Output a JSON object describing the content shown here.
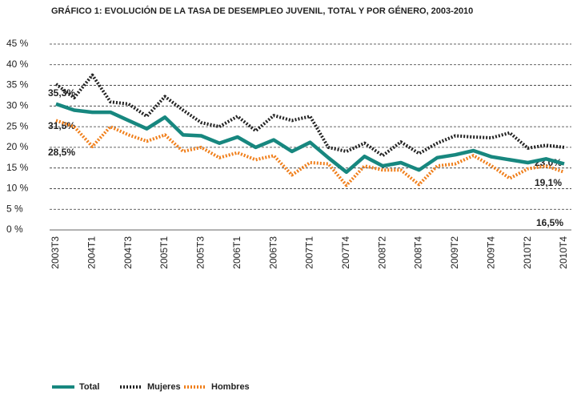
{
  "chart_data": {
    "type": "line",
    "title": "GRÁFICO 1: EVOLUCIÓN DE LA TASA DE DESEMPLEO JUVENIL, TOTAL Y POR GÉNERO, 2003-2010",
    "categories": [
      "2003T3",
      null,
      "2004T1",
      null,
      "2004T3",
      null,
      "2005T1",
      null,
      "2005T3",
      null,
      "2006T1",
      null,
      "2006T3",
      null,
      "2007T1",
      null,
      "2007T4",
      null,
      "2008T2",
      null,
      "2008T4",
      null,
      "2009T2",
      null,
      "2009T4",
      null,
      "2010T2",
      null,
      "2010T4"
    ],
    "series": [
      {
        "name": "Total",
        "color": "#17877f",
        "style": "solid",
        "values": [
          30.5,
          29,
          28.5,
          28.5,
          26.5,
          24.5,
          27.3,
          23,
          22.8,
          21,
          22.5,
          20,
          21.8,
          19,
          21.2,
          17.5,
          14,
          17.8,
          15.5,
          16.3,
          14.5,
          17.5,
          18.2,
          19.2,
          17.7,
          17,
          16.3,
          17.2,
          16
        ]
      },
      {
        "name": "Mujeres",
        "color": "#222222",
        "style": "dotted",
        "values": [
          35.3,
          32,
          37.5,
          31,
          30.5,
          27.5,
          32.3,
          29,
          26,
          25,
          27.5,
          24,
          27.7,
          26.5,
          27.5,
          20,
          19,
          21,
          18,
          21.3,
          18.5,
          21,
          22.8,
          22.5,
          22.3,
          23.5,
          19.8,
          20.5,
          20
        ]
      },
      {
        "name": "Hombres",
        "color": "#f07f1b",
        "style": "dotted",
        "values": [
          26.5,
          25,
          20.2,
          25,
          23,
          21.5,
          23,
          19,
          20,
          17.5,
          18.7,
          17,
          18,
          13.3,
          16.3,
          16,
          10.8,
          15.5,
          14.5,
          14.5,
          11,
          15.5,
          16,
          18,
          15.5,
          12.5,
          14.8,
          15.5,
          14
        ]
      }
    ],
    "annotations": [
      "35,3%",
      "31,5%",
      "28,5%",
      "23,0%",
      "19,1%",
      "16,5%"
    ],
    "ylim": [
      0,
      45
    ],
    "yticks": [
      {
        "value": 0,
        "label": "0 %"
      },
      {
        "value": 5,
        "label": "5 %"
      },
      {
        "value": 10,
        "label": "10 %"
      },
      {
        "value": 15,
        "label": "15 %"
      },
      {
        "value": 20,
        "label": "20 %"
      },
      {
        "value": 25,
        "label": "25 %"
      },
      {
        "value": 30,
        "label": "30 %"
      },
      {
        "value": 35,
        "label": "35 %"
      },
      {
        "value": 40,
        "label": "40 %"
      },
      {
        "value": 45,
        "label": "45 %"
      }
    ],
    "grid": true
  }
}
